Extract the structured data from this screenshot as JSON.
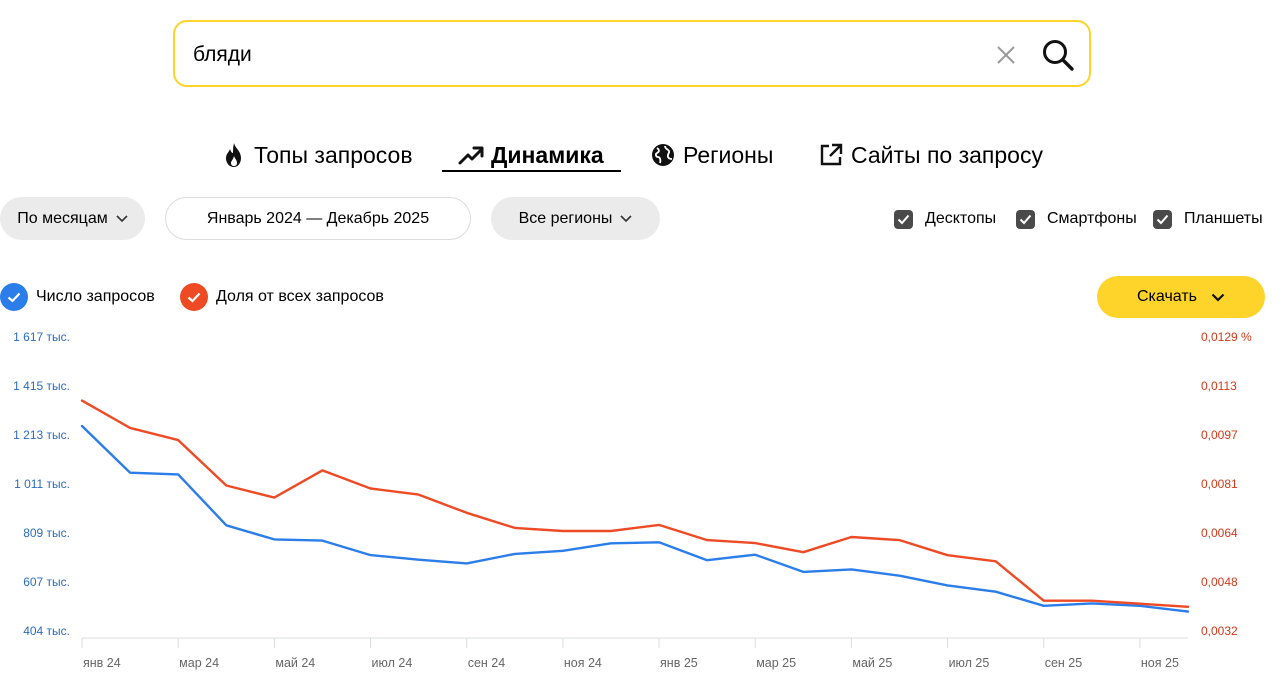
{
  "search": {
    "value": "бляди",
    "clear_icon": "close-icon",
    "search_icon": "search-icon"
  },
  "tabs": [
    {
      "label": "Топы запросов",
      "icon": "fire-icon",
      "active": false
    },
    {
      "label": "Динамика",
      "icon": "trend-up-icon",
      "active": true
    },
    {
      "label": "Регионы",
      "icon": "globe-icon",
      "active": false
    },
    {
      "label": "Сайты по запросу",
      "icon": "external-link-icon",
      "active": false
    }
  ],
  "filters": {
    "period": "По месяцам",
    "date_range": "Январь 2024 — Декабрь 2025",
    "region": "Все регионы"
  },
  "devices": [
    {
      "label": "Десктопы",
      "checked": true
    },
    {
      "label": "Смартфоны",
      "checked": true
    },
    {
      "label": "Планшеты",
      "checked": true
    }
  ],
  "legend": [
    {
      "label": "Число запросов",
      "color": "#2b7de9",
      "checked": true
    },
    {
      "label": "Доля от всех запросов",
      "color": "#ee4b25",
      "checked": true
    }
  ],
  "download": {
    "label": "Скачать"
  },
  "colors": {
    "accent": "#fed42b",
    "count_series": "#2b7de9",
    "share_series": "#ee4b25",
    "left_axis": "#2a6cbf",
    "right_axis": "#d03a1a"
  },
  "chart_data": {
    "type": "line",
    "x_tick_labels": [
      "янв 24",
      "мар 24",
      "май 24",
      "июл 24",
      "сен 24",
      "ноя 24",
      "янв 25",
      "мар 25",
      "май 25",
      "июл 25",
      "сен 25",
      "ноя 25"
    ],
    "x": [
      "2024-01",
      "2024-02",
      "2024-03",
      "2024-04",
      "2024-05",
      "2024-06",
      "2024-07",
      "2024-08",
      "2024-09",
      "2024-10",
      "2024-11",
      "2024-12",
      "2025-01",
      "2025-02",
      "2025-03",
      "2025-04",
      "2025-05",
      "2025-06",
      "2025-07",
      "2025-08",
      "2025-09",
      "2025-10",
      "2025-11",
      "2025-12"
    ],
    "y_left_ticks": [
      "404 тыс.",
      "607 тыс.",
      "809 тыс.",
      "1 011 тыс.",
      "1 213 тыс.",
      "1 415 тыс.",
      "1 617 тыс."
    ],
    "y_right_ticks": [
      "0,0032",
      "0,0048",
      "0,0064",
      "0,0081",
      "0,0097",
      "0,0113",
      "0,0129 %"
    ],
    "y_left_range": [
      404,
      1617
    ],
    "y_right_range": [
      0.0032,
      0.0129
    ],
    "series": [
      {
        "name": "Число запросов",
        "axis": "left",
        "unit": "тыс.",
        "values": [
          1250,
          1057,
          1050,
          840,
          782,
          777,
          717,
          698,
          683,
          722,
          735,
          766,
          770,
          696,
          719,
          648,
          658,
          632,
          592,
          566,
          508,
          518,
          508,
          484
        ]
      },
      {
        "name": "Доля от всех запросов",
        "axis": "right",
        "unit": "%",
        "values": [
          0.0108,
          0.0099,
          0.0095,
          0.008,
          0.0076,
          0.0085,
          0.0079,
          0.0077,
          0.0071,
          0.0066,
          0.0065,
          0.0065,
          0.0067,
          0.0062,
          0.0061,
          0.0058,
          0.0063,
          0.0062,
          0.0057,
          0.0055,
          0.0042,
          0.0042,
          0.0041,
          0.004
        ]
      }
    ],
    "grid": false
  }
}
